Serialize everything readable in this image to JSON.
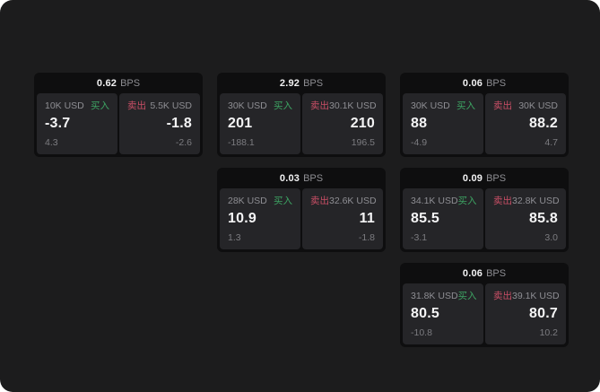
{
  "labels": {
    "buy": "买入",
    "sell": "卖出",
    "bps_unit": "BPS"
  },
  "colors": {
    "background": "#1c1c1d",
    "card_header": "#0e0e0f",
    "panel": "#252528",
    "buy_green": "#3da463",
    "sell_red": "#ca4f66",
    "value_white": "#f5f5f6",
    "label_gray": "#8e8e93",
    "sub_gray": "#7c7c80"
  },
  "cards": [
    {
      "bps": "0.62",
      "row": 1,
      "col": 1,
      "buy": {
        "amount": "10K USD",
        "value": "-3.7",
        "sub": "4.3"
      },
      "sell": {
        "amount": "5.5K USD",
        "value": "-1.8",
        "sub": "-2.6"
      }
    },
    {
      "bps": "2.92",
      "row": 1,
      "col": 2,
      "buy": {
        "amount": "30K USD",
        "value": "201",
        "sub": "-188.1"
      },
      "sell": {
        "amount": "30.1K USD",
        "value": "210",
        "sub": "196.5"
      }
    },
    {
      "bps": "0.06",
      "row": 1,
      "col": 3,
      "buy": {
        "amount": "30K USD",
        "value": "88",
        "sub": "-4.9"
      },
      "sell": {
        "amount": "30K USD",
        "value": "88.2",
        "sub": "4.7"
      }
    },
    {
      "bps": "0.03",
      "row": 2,
      "col": 2,
      "buy": {
        "amount": "28K USD",
        "value": "10.9",
        "sub": "1.3"
      },
      "sell": {
        "amount": "32.6K USD",
        "value": "11",
        "sub": "-1.8"
      }
    },
    {
      "bps": "0.09",
      "row": 2,
      "col": 3,
      "buy": {
        "amount": "34.1K USD",
        "value": "85.5",
        "sub": "-3.1"
      },
      "sell": {
        "amount": "32.8K USD",
        "value": "85.8",
        "sub": "3.0"
      }
    },
    {
      "bps": "0.06",
      "row": 3,
      "col": 3,
      "buy": {
        "amount": "31.8K USD",
        "value": "80.5",
        "sub": "-10.8"
      },
      "sell": {
        "amount": "39.1K USD",
        "value": "80.7",
        "sub": "10.2"
      }
    }
  ]
}
